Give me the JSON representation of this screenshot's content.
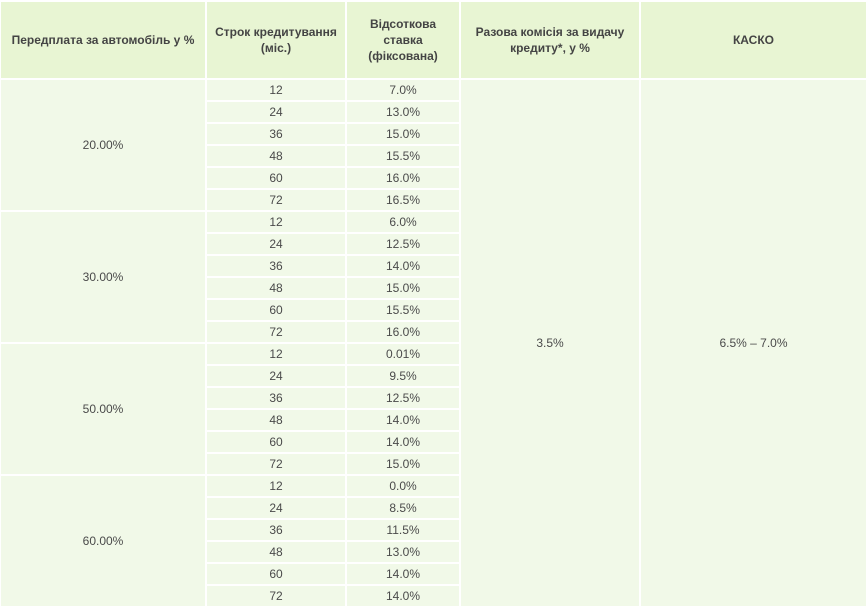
{
  "headers": {
    "down_payment": "Передплата за автомобіль у %",
    "term": "Строк кредитування (міс.)",
    "rate": "Відсоткова ставка (фіксована)",
    "commission": "Разова комісія за видачу кредиту*, у %",
    "kasko": "КАСКО"
  },
  "commission_value": "3.5%",
  "kasko_value": "6.5% – 7.0%",
  "groups": [
    {
      "down_payment": "20.00%",
      "rows": [
        {
          "term": "12",
          "rate": "7.0%"
        },
        {
          "term": "24",
          "rate": "13.0%"
        },
        {
          "term": "36",
          "rate": "15.0%"
        },
        {
          "term": "48",
          "rate": "15.5%"
        },
        {
          "term": "60",
          "rate": "16.0%"
        },
        {
          "term": "72",
          "rate": "16.5%"
        }
      ]
    },
    {
      "down_payment": "30.00%",
      "rows": [
        {
          "term": "12",
          "rate": "6.0%"
        },
        {
          "term": "24",
          "rate": "12.5%"
        },
        {
          "term": "36",
          "rate": "14.0%"
        },
        {
          "term": "48",
          "rate": "15.0%"
        },
        {
          "term": "60",
          "rate": "15.5%"
        },
        {
          "term": "72",
          "rate": "16.0%"
        }
      ]
    },
    {
      "down_payment": "50.00%",
      "rows": [
        {
          "term": "12",
          "rate": "0.01%"
        },
        {
          "term": "24",
          "rate": "9.5%"
        },
        {
          "term": "36",
          "rate": "12.5%"
        },
        {
          "term": "48",
          "rate": "14.0%"
        },
        {
          "term": "60",
          "rate": "14.0%"
        },
        {
          "term": "72",
          "rate": "15.0%"
        }
      ]
    },
    {
      "down_payment": "60.00%",
      "rows": [
        {
          "term": "12",
          "rate": "0.0%"
        },
        {
          "term": "24",
          "rate": "8.5%"
        },
        {
          "term": "36",
          "rate": "11.5%"
        },
        {
          "term": "48",
          "rate": "13.0%"
        },
        {
          "term": "60",
          "rate": "14.0%"
        },
        {
          "term": "72",
          "rate": "14.0%"
        }
      ]
    }
  ]
}
